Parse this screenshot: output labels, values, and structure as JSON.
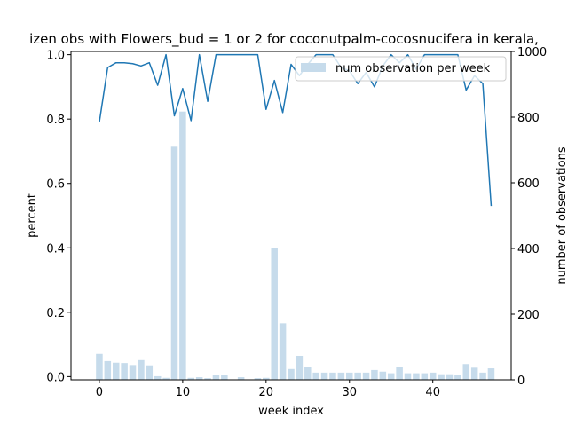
{
  "chart_data": {
    "type": "bar+line",
    "title": "izen obs with Flowers_bud = 1 or 2 for coconutpalm-cocosnucifera in kerala,",
    "xlabel": "week index",
    "ylabel_left": "percent",
    "ylabel_right": "number of observations",
    "xlim": [
      -3.4,
      49.4
    ],
    "ylim_left": [
      -0.01,
      1.01
    ],
    "ylim_right": [
      0,
      1000
    ],
    "x_ticks": [
      0,
      10,
      20,
      30,
      40
    ],
    "y_ticks_left": [
      "0.0",
      "0.2",
      "0.4",
      "0.6",
      "0.8",
      "1.0"
    ],
    "y_ticks_right": [
      "0",
      "200",
      "400",
      "600",
      "800",
      "1000"
    ],
    "legend": {
      "label": "num observation per week",
      "position": "upper right"
    },
    "colors": {
      "bar": "#c6dbeb",
      "line": "#1f77b4"
    },
    "bar_series": {
      "name": "num observation per week",
      "x": [
        0,
        1,
        2,
        3,
        4,
        5,
        6,
        7,
        8,
        9,
        10,
        11,
        12,
        13,
        14,
        15,
        16,
        17,
        18,
        19,
        20,
        21,
        22,
        23,
        24,
        25,
        26,
        27,
        28,
        29,
        30,
        31,
        32,
        33,
        34,
        35,
        36,
        37,
        38,
        39,
        40,
        41,
        42,
        43,
        44,
        45,
        46,
        47
      ],
      "values": [
        79,
        57,
        52,
        51,
        45,
        60,
        44,
        11,
        6,
        710,
        817,
        6,
        8,
        5,
        14,
        16,
        0,
        8,
        0,
        5,
        6,
        400,
        172,
        33,
        73,
        38,
        22,
        22,
        22,
        22,
        22,
        22,
        22,
        30,
        25,
        20,
        38,
        20,
        20,
        20,
        22,
        17,
        17,
        15,
        48,
        37,
        22,
        35
      ]
    },
    "line_series": {
      "x": [
        0,
        1,
        2,
        3,
        4,
        5,
        6,
        7,
        8,
        9,
        10,
        11,
        12,
        13,
        14,
        15,
        16,
        17,
        18,
        19,
        20,
        21,
        22,
        23,
        24,
        25,
        26,
        27,
        28,
        29,
        30,
        31,
        32,
        33,
        34,
        35,
        36,
        37,
        38,
        39,
        40,
        41,
        42,
        43,
        44,
        45,
        46,
        47
      ],
      "values": [
        0.79,
        0.96,
        0.975,
        0.975,
        0.972,
        0.965,
        0.975,
        0.905,
        1.0,
        0.81,
        0.895,
        0.795,
        1.0,
        0.855,
        1.0,
        1.0,
        1.0,
        1.0,
        1.0,
        1.0,
        0.83,
        0.92,
        0.82,
        0.97,
        0.935,
        0.97,
        1.0,
        1.0,
        1.0,
        0.96,
        0.95,
        0.91,
        0.945,
        0.9,
        0.965,
        1.0,
        0.975,
        1.0,
        0.955,
        1.0,
        1.0,
        1.0,
        1.0,
        1.0,
        0.89,
        0.935,
        0.91,
        0.53
      ]
    }
  }
}
